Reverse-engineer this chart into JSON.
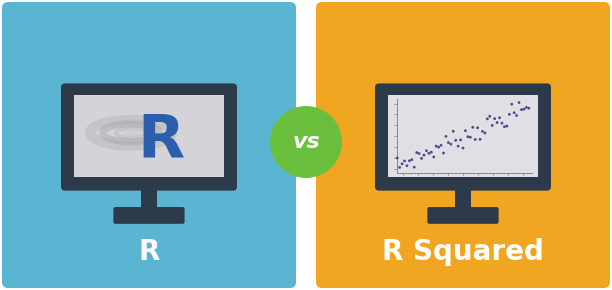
{
  "bg_color": "#ffffff",
  "left_bg": "#5ab5d3",
  "right_bg": "#f0a620",
  "vs_circle_color": "#6abf3c",
  "vs_text_color": "#ffffff",
  "monitor_body_color": "#2d3a4a",
  "monitor_screen_color": "#d4d4d8",
  "label_left": "R",
  "label_right": "R Squared",
  "label_color": "#ffffff",
  "label_fontsize": 20,
  "vs_text": "vs",
  "r_letter_color": "#2b5fad",
  "scatter_dot_color": "#3a3a8c",
  "ring_color_outer": "#b0b0b0",
  "ring_color_inner": "#c8c8c8"
}
